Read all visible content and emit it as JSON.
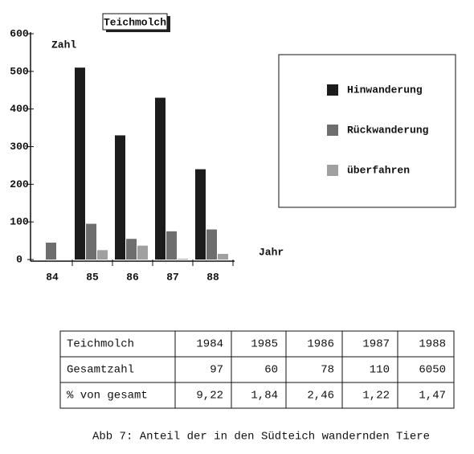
{
  "chart_data": {
    "type": "bar",
    "title": "Teichmolch",
    "y_label": "Zahl",
    "x_label": "Jahr",
    "categories": [
      "84",
      "85",
      "86",
      "87",
      "88"
    ],
    "series": [
      {
        "name": "Hinwanderung",
        "color": "#1c1c1c",
        "values": [
          null,
          510,
          330,
          430,
          240
        ]
      },
      {
        "name": "Rückwanderung",
        "color": "#6e6e6e",
        "values": [
          45,
          95,
          55,
          75,
          80
        ]
      },
      {
        "name": "überfahren",
        "color": "#a0a0a0",
        "values": [
          null,
          25,
          37,
          2,
          15
        ]
      }
    ],
    "ylim": [
      0,
      600
    ],
    "yticks": [
      0,
      100,
      200,
      300,
      400,
      500,
      600
    ],
    "legend": "right"
  },
  "table": {
    "rows": [
      [
        "Teichmolch",
        "1984",
        "1985",
        "1986",
        "1987",
        "1988"
      ],
      [
        "Gesamtzahl",
        "97",
        "60",
        "78",
        "110",
        "6050"
      ],
      [
        "% von gesamt",
        "9,22",
        "1,84",
        "2,46",
        "1,22",
        "1,47"
      ]
    ]
  },
  "caption": "Abb 7: Anteil der in den Südteich wandernden Tiere"
}
